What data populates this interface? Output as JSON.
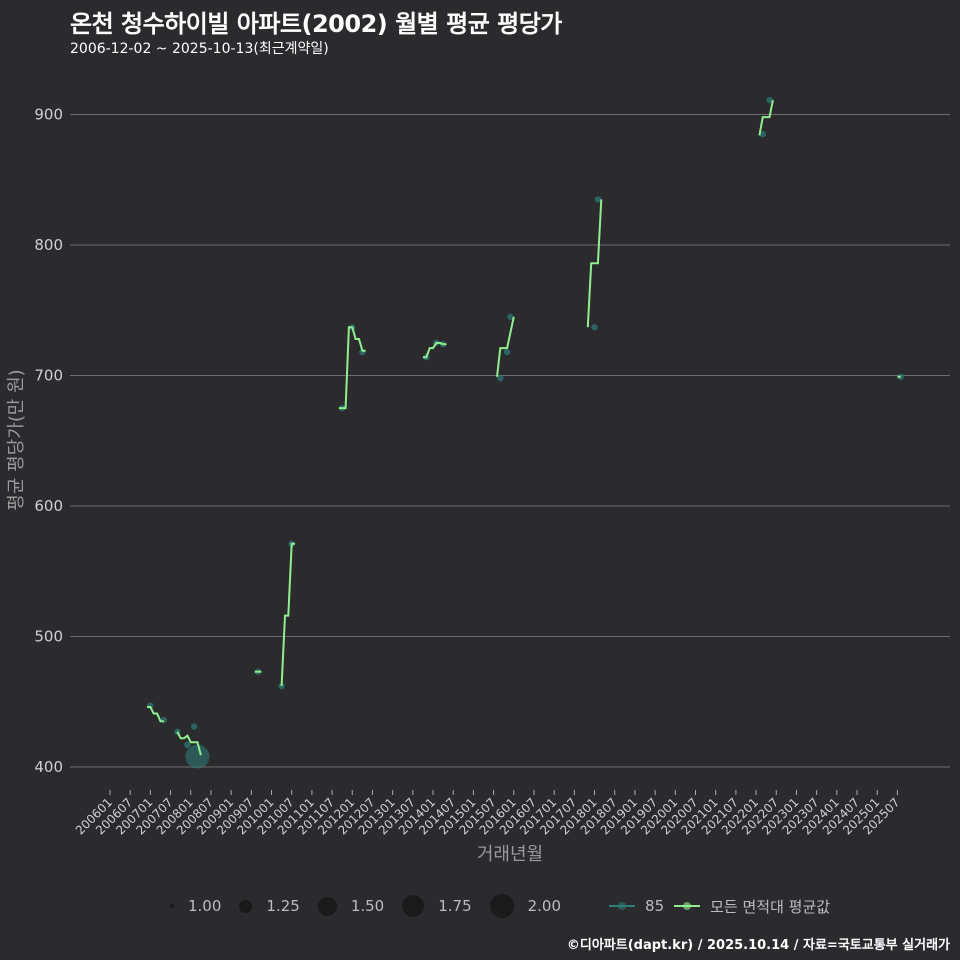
{
  "header": {
    "title": "온천 청수하이빌 아파트(2002) 월별 평균 평당가",
    "subtitle": "2006-12-02 ~ 2025-10-13(최근계약일)"
  },
  "caption": "©디아파트(dapt.kr) / 2025.10.14 / 자료=국토교통부 실거래가",
  "colors": {
    "background": "#2b2a2c",
    "grid": "#6e6e6e",
    "avg_line": "#90ee90",
    "series_85": "#2e7d7a"
  },
  "legend": {
    "size_items": [
      {
        "label": "1.00",
        "d": 4
      },
      {
        "label": "1.25",
        "d": 13
      },
      {
        "label": "1.50",
        "d": 19
      },
      {
        "label": "1.75",
        "d": 22
      },
      {
        "label": "2.00",
        "d": 24
      }
    ],
    "line_items": [
      {
        "label": "85",
        "color": "#2e7d7a"
      },
      {
        "label": "모든 면적대 평균값",
        "color": "#90ee90"
      }
    ]
  },
  "chart_data": {
    "type": "line",
    "title": "온천 청수하이빌 아파트(2002) 월별 평균 평당가",
    "subtitle": "2006-12-02 ~ 2025-10-13(최근계약일)",
    "xlabel": "거래년월",
    "ylabel": "평균 평당가(만 원)",
    "ylim": [
      383,
      935
    ],
    "yticks": [
      400,
      500,
      600,
      700,
      800,
      900
    ],
    "xticks": [
      "200601",
      "200607",
      "200701",
      "200707",
      "200801",
      "200807",
      "200901",
      "200907",
      "201001",
      "201007",
      "201101",
      "201107",
      "201201",
      "201207",
      "201301",
      "201307",
      "201401",
      "201407",
      "201501",
      "201507",
      "201601",
      "201607",
      "201701",
      "201707",
      "201801",
      "201807",
      "201901",
      "201907",
      "202001",
      "202007",
      "202101",
      "202107",
      "202201",
      "202207",
      "202301",
      "202307",
      "202401",
      "202407",
      "202501",
      "202507"
    ],
    "grid": true,
    "legend_position": "bottom",
    "series": [
      {
        "name": "모든 면적대 평균값",
        "segments": [
          [
            [
              "2006-12",
              446
            ],
            [
              "2007-01",
              446
            ],
            [
              "2007-02",
              441
            ],
            [
              "2007-03",
              441
            ],
            [
              "2007-04",
              435
            ],
            [
              "2007-05",
              435
            ]
          ],
          [
            [
              "2007-09",
              427
            ],
            [
              "2007-10",
              422
            ],
            [
              "2007-11",
              422
            ],
            [
              "2007-12",
              424
            ],
            [
              "2008-01",
              419
            ],
            [
              "2008-02",
              419
            ],
            [
              "2008-03",
              419
            ],
            [
              "2008-04",
              409
            ]
          ],
          [
            [
              "2009-08",
              473
            ],
            [
              "2009-09",
              473
            ],
            [
              "2009-10",
              473
            ]
          ],
          [
            [
              "2010-04",
              462
            ],
            [
              "2010-05",
              516
            ],
            [
              "2010-06",
              516
            ],
            [
              "2010-07",
              571
            ],
            [
              "2010-08",
              571
            ]
          ],
          [
            [
              "2011-09",
              675
            ],
            [
              "2011-10",
              675
            ],
            [
              "2011-11",
              675
            ],
            [
              "2011-12",
              737
            ],
            [
              "2012-01",
              737
            ],
            [
              "2012-02",
              728
            ],
            [
              "2012-03",
              728
            ],
            [
              "2012-04",
              719
            ],
            [
              "2012-05",
              719
            ]
          ],
          [
            [
              "2013-10",
              714
            ],
            [
              "2013-11",
              714
            ],
            [
              "2013-12",
              721
            ],
            [
              "2014-01",
              721
            ],
            [
              "2014-02",
              725
            ],
            [
              "2014-03",
              725
            ],
            [
              "2014-04",
              724
            ],
            [
              "2014-05",
              724
            ]
          ],
          [
            [
              "2015-08",
              699
            ],
            [
              "2015-09",
              721
            ],
            [
              "2015-10",
              721
            ],
            [
              "2015-11",
              721
            ],
            [
              "2016-01",
              745
            ]
          ],
          [
            [
              "2017-11",
              737
            ],
            [
              "2017-12",
              786
            ],
            [
              "2018-01",
              786
            ],
            [
              "2018-02",
              786
            ],
            [
              "2018-03",
              835
            ]
          ],
          [
            [
              "2022-02",
              884
            ],
            [
              "2022-03",
              898
            ],
            [
              "2022-04",
              898
            ],
            [
              "2022-05",
              898
            ],
            [
              "2022-06",
              911
            ]
          ],
          [
            [
              "2025-07",
              699
            ],
            [
              "2025-08",
              699
            ]
          ]
        ]
      },
      {
        "name": "85",
        "points": [
          [
            "2007-01",
            447,
            1
          ],
          [
            "2007-05",
            436,
            1
          ],
          [
            "2007-09",
            427,
            1
          ],
          [
            "2007-12",
            417,
            1
          ],
          [
            "2008-02",
            431,
            1
          ],
          [
            "2008-03",
            408,
            2
          ],
          [
            "2009-09",
            473,
            1
          ],
          [
            "2010-04",
            462,
            1
          ],
          [
            "2010-07",
            571,
            1
          ],
          [
            "2011-10",
            675,
            1
          ],
          [
            "2012-01",
            737,
            1
          ],
          [
            "2012-04",
            718,
            1
          ],
          [
            "2013-11",
            714,
            1
          ],
          [
            "2014-02",
            725,
            1
          ],
          [
            "2014-04",
            724,
            1
          ],
          [
            "2015-09",
            698,
            1
          ],
          [
            "2015-11",
            718,
            1
          ],
          [
            "2015-12",
            745,
            1
          ],
          [
            "2018-01",
            737,
            1
          ],
          [
            "2018-02",
            835,
            1
          ],
          [
            "2022-03",
            885,
            1
          ],
          [
            "2022-05",
            911,
            1
          ],
          [
            "2025-08",
            699,
            1
          ]
        ]
      }
    ]
  }
}
